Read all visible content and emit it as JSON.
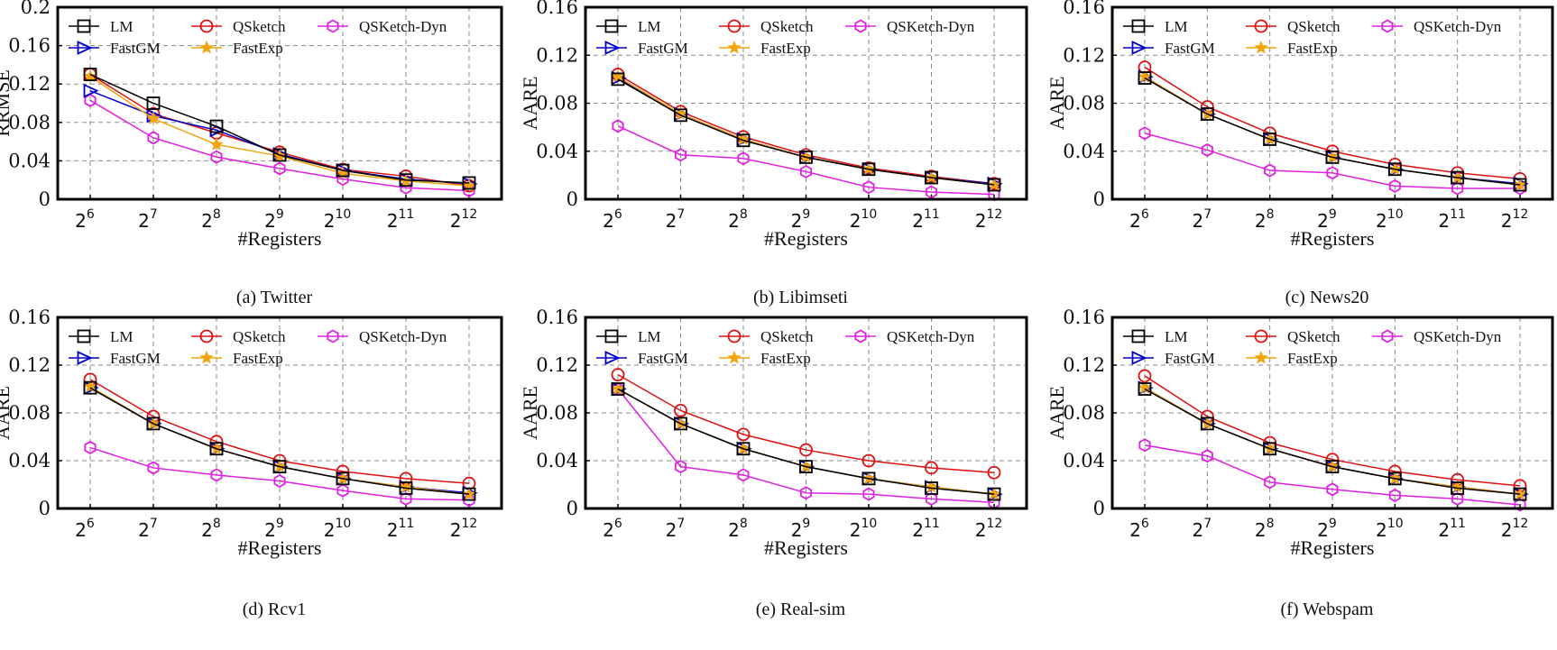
{
  "chart_data": [
    {
      "type": "line",
      "caption": "(a)  Twitter",
      "xlabel": "#Registers",
      "ylabel": "RRMSE",
      "categories": [
        "6",
        "7",
        "8",
        "9",
        "10",
        "11",
        "12"
      ],
      "tick_base": "2",
      "ylim": [
        0,
        0.2
      ],
      "yticks": [
        "0",
        "0.04",
        "0.08",
        "0.12",
        "0.16",
        "0.2"
      ],
      "grid": true,
      "series": [
        {
          "name": "LM",
          "color": "#000000",
          "marker": "square",
          "values": [
            0.13,
            0.1,
            0.076,
            0.046,
            0.03,
            0.02,
            0.017
          ]
        },
        {
          "name": "FastGM",
          "color": "#0000cc",
          "marker": "triangle-right",
          "values": [
            0.113,
            0.087,
            0.072,
            0.047,
            0.03,
            0.021,
            0.016
          ]
        },
        {
          "name": "QSketch",
          "color": "#dd1111",
          "marker": "circle",
          "values": [
            0.13,
            0.089,
            0.069,
            0.049,
            0.031,
            0.024,
            0.014
          ]
        },
        {
          "name": "FastExp",
          "color": "#f2a40c",
          "marker": "star",
          "values": [
            0.128,
            0.084,
            0.057,
            0.045,
            0.027,
            0.019,
            0.014
          ]
        },
        {
          "name": "QSKetch-Dyn",
          "color": "#e020e0",
          "marker": "hexagon",
          "values": [
            0.103,
            0.064,
            0.044,
            0.032,
            0.021,
            0.012,
            0.009
          ]
        }
      ]
    },
    {
      "type": "line",
      "caption": "(b)  Libimseti",
      "xlabel": "#Registers",
      "ylabel": "AARE",
      "categories": [
        "6",
        "7",
        "8",
        "9",
        "10",
        "11",
        "12"
      ],
      "tick_base": "2",
      "ylim": [
        0,
        0.16
      ],
      "yticks": [
        "0",
        "0.04",
        "0.08",
        "0.12",
        "0.16"
      ],
      "grid": true,
      "series": [
        {
          "name": "LM",
          "color": "#000000",
          "marker": "square",
          "values": [
            0.1,
            0.07,
            0.049,
            0.035,
            0.025,
            0.018,
            0.012
          ]
        },
        {
          "name": "FastGM",
          "color": "#0000cc",
          "marker": "triangle-right",
          "values": [
            0.101,
            0.071,
            0.05,
            0.035,
            0.025,
            0.018,
            0.013
          ]
        },
        {
          "name": "QSketch",
          "color": "#dd1111",
          "marker": "circle",
          "values": [
            0.104,
            0.073,
            0.052,
            0.037,
            0.026,
            0.019,
            0.013
          ]
        },
        {
          "name": "FastExp",
          "color": "#f2a40c",
          "marker": "star",
          "values": [
            0.102,
            0.071,
            0.05,
            0.035,
            0.025,
            0.018,
            0.012
          ]
        },
        {
          "name": "QSKetch-Dyn",
          "color": "#e020e0",
          "marker": "hexagon",
          "values": [
            0.061,
            0.037,
            0.034,
            0.023,
            0.01,
            0.006,
            0.004
          ]
        }
      ]
    },
    {
      "type": "line",
      "caption": "(c)  News20",
      "xlabel": "#Registers",
      "ylabel": "AARE",
      "categories": [
        "6",
        "7",
        "8",
        "9",
        "10",
        "11",
        "12"
      ],
      "tick_base": "2",
      "ylim": [
        0,
        0.16
      ],
      "yticks": [
        "0",
        "0.04",
        "0.08",
        "0.12",
        "0.16"
      ],
      "grid": true,
      "series": [
        {
          "name": "LM",
          "color": "#000000",
          "marker": "square",
          "values": [
            0.101,
            0.071,
            0.05,
            0.035,
            0.025,
            0.018,
            0.012
          ]
        },
        {
          "name": "FastGM",
          "color": "#0000cc",
          "marker": "triangle-right",
          "values": [
            0.102,
            0.071,
            0.05,
            0.035,
            0.025,
            0.018,
            0.013
          ]
        },
        {
          "name": "QSketch",
          "color": "#dd1111",
          "marker": "circle",
          "values": [
            0.11,
            0.077,
            0.055,
            0.04,
            0.029,
            0.022,
            0.017
          ]
        },
        {
          "name": "FastExp",
          "color": "#f2a40c",
          "marker": "star",
          "values": [
            0.102,
            0.071,
            0.05,
            0.035,
            0.025,
            0.018,
            0.012
          ]
        },
        {
          "name": "QSKetch-Dyn",
          "color": "#e020e0",
          "marker": "hexagon",
          "values": [
            0.055,
            0.041,
            0.024,
            0.022,
            0.011,
            0.009,
            0.009
          ]
        }
      ]
    },
    {
      "type": "line",
      "caption": "(d)  Rcv1",
      "xlabel": "#Registers",
      "ylabel": "AARE",
      "categories": [
        "6",
        "7",
        "8",
        "9",
        "10",
        "11",
        "12"
      ],
      "tick_base": "2",
      "ylim": [
        0,
        0.16
      ],
      "yticks": [
        "0",
        "0.04",
        "0.08",
        "0.12",
        "0.16"
      ],
      "grid": true,
      "series": [
        {
          "name": "LM",
          "color": "#000000",
          "marker": "square",
          "values": [
            0.101,
            0.071,
            0.05,
            0.035,
            0.025,
            0.017,
            0.012
          ]
        },
        {
          "name": "FastGM",
          "color": "#0000cc",
          "marker": "triangle-right",
          "values": [
            0.101,
            0.071,
            0.05,
            0.035,
            0.025,
            0.018,
            0.013
          ]
        },
        {
          "name": "QSketch",
          "color": "#dd1111",
          "marker": "circle",
          "values": [
            0.108,
            0.077,
            0.056,
            0.04,
            0.031,
            0.025,
            0.021
          ]
        },
        {
          "name": "FastExp",
          "color": "#f2a40c",
          "marker": "star",
          "values": [
            0.102,
            0.071,
            0.05,
            0.035,
            0.025,
            0.018,
            0.012
          ]
        },
        {
          "name": "QSKetch-Dyn",
          "color": "#e020e0",
          "marker": "hexagon",
          "values": [
            0.051,
            0.034,
            0.028,
            0.023,
            0.015,
            0.008,
            0.007
          ]
        }
      ]
    },
    {
      "type": "line",
      "caption": "(e)  Real-sim",
      "xlabel": "#Registers",
      "ylabel": "AARE",
      "categories": [
        "6",
        "7",
        "8",
        "9",
        "10",
        "11",
        "12"
      ],
      "tick_base": "2",
      "ylim": [
        0,
        0.16
      ],
      "yticks": [
        "0",
        "0.04",
        "0.08",
        "0.12",
        "0.16"
      ],
      "grid": true,
      "series": [
        {
          "name": "LM",
          "color": "#000000",
          "marker": "square",
          "values": [
            0.1,
            0.071,
            0.05,
            0.035,
            0.025,
            0.017,
            0.012
          ]
        },
        {
          "name": "FastGM",
          "color": "#0000cc",
          "marker": "triangle-right",
          "values": [
            0.1,
            0.071,
            0.05,
            0.035,
            0.025,
            0.018,
            0.012
          ]
        },
        {
          "name": "QSketch",
          "color": "#dd1111",
          "marker": "circle",
          "values": [
            0.112,
            0.082,
            0.062,
            0.049,
            0.04,
            0.034,
            0.03
          ]
        },
        {
          "name": "FastExp",
          "color": "#f2a40c",
          "marker": "star",
          "values": [
            0.1,
            0.071,
            0.05,
            0.035,
            0.025,
            0.018,
            0.012
          ]
        },
        {
          "name": "QSKetch-Dyn",
          "color": "#e020e0",
          "marker": "hexagon",
          "values": [
            0.1,
            0.035,
            0.028,
            0.013,
            0.012,
            0.008,
            0.005
          ]
        }
      ]
    },
    {
      "type": "line",
      "caption": "(f)  Webspam",
      "xlabel": "#Registers",
      "ylabel": "AARE",
      "categories": [
        "6",
        "7",
        "8",
        "9",
        "10",
        "11",
        "12"
      ],
      "tick_base": "2",
      "ylim": [
        0,
        0.16
      ],
      "yticks": [
        "0",
        "0.04",
        "0.08",
        "0.12",
        "0.16"
      ],
      "grid": true,
      "series": [
        {
          "name": "LM",
          "color": "#000000",
          "marker": "square",
          "values": [
            0.1,
            0.071,
            0.05,
            0.035,
            0.025,
            0.017,
            0.012
          ]
        },
        {
          "name": "FastGM",
          "color": "#0000cc",
          "marker": "triangle-right",
          "values": [
            0.101,
            0.071,
            0.05,
            0.035,
            0.025,
            0.018,
            0.012
          ]
        },
        {
          "name": "QSketch",
          "color": "#dd1111",
          "marker": "circle",
          "values": [
            0.111,
            0.077,
            0.055,
            0.041,
            0.031,
            0.024,
            0.019
          ]
        },
        {
          "name": "FastExp",
          "color": "#f2a40c",
          "marker": "star",
          "values": [
            0.101,
            0.071,
            0.05,
            0.035,
            0.025,
            0.018,
            0.012
          ]
        },
        {
          "name": "QSKetch-Dyn",
          "color": "#e020e0",
          "marker": "hexagon",
          "values": [
            0.053,
            0.044,
            0.022,
            0.016,
            0.011,
            0.008,
            0.003
          ]
        }
      ]
    }
  ]
}
